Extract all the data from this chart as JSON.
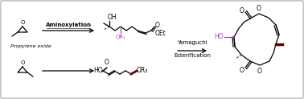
{
  "bg_color": "#e8e8e8",
  "box_color": "#ffffff",
  "box_edge_color": "#b0b0b0",
  "text_aminoxylation": "Aminoxylation",
  "text_yamaguchi": "Yamaguchi",
  "text_esterification": "Esterification",
  "text_propylene": "Propylene oxide",
  "text_OH": "OH",
  "text_OEt": "OEt",
  "text_HO": "HO",
  "text_OR1": "OR₁",
  "text_OR3": "OR₃",
  "text_O": "O",
  "purple_color": "#aa44bb",
  "dark_red_color": "#660000",
  "blue_color": "#3333aa",
  "black_color": "#000000",
  "figsize": [
    3.78,
    1.23
  ],
  "dpi": 100
}
